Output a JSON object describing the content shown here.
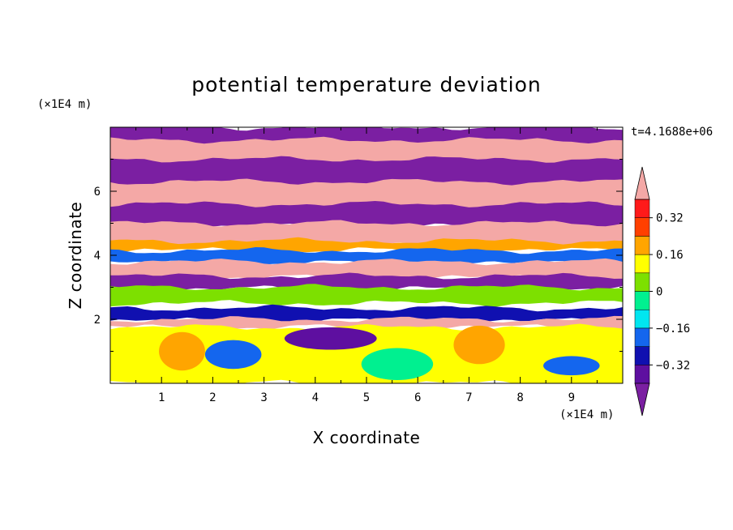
{
  "chart_data": {
    "type": "heatmap",
    "title": "potential temperature deviation",
    "xlabel": "X coordinate",
    "ylabel": "Z coordinate",
    "x_unit": "(×1E4 m)",
    "y_unit": "(×1E4 m)",
    "time_label": "t=4.1688e+06",
    "xlim": [
      0,
      10
    ],
    "ylim": [
      0,
      8
    ],
    "x_ticks": [
      1,
      2,
      3,
      4,
      5,
      6,
      7,
      8,
      9
    ],
    "y_ticks": [
      2,
      4,
      6
    ],
    "x_tick_labels": [
      "1",
      "2",
      "3",
      "4",
      "5",
      "6",
      "7",
      "8",
      "9"
    ],
    "y_tick_labels": [
      "2",
      "4",
      "6"
    ],
    "colorbar": {
      "levels": [
        -0.4,
        -0.32,
        -0.24,
        -0.16,
        -0.08,
        0,
        0.08,
        0.16,
        0.24,
        0.32,
        0.4
      ],
      "colors": [
        "#7b1fa2",
        "#5e0fa0",
        "#1010b0",
        "#1466ee",
        "#00e6f0",
        "#00f090",
        "#7de000",
        "#ffff00",
        "#ffa500",
        "#ff4000",
        "#ff1a1a",
        "#f4a8a6"
      ],
      "labels": [
        "0.32",
        "0.16",
        "0",
        "−0.16",
        "−0.32"
      ],
      "label_values": [
        0.32,
        0.16,
        0,
        -0.16,
        -0.32
      ],
      "extend": "both"
    },
    "features": [
      {
        "kind": "band",
        "value": -0.45,
        "x": [
          0,
          10
        ],
        "z": [
          7.4,
          8.0
        ]
      },
      {
        "kind": "band",
        "value": 0.45,
        "x": [
          0,
          10
        ],
        "z": [
          6.8,
          7.6
        ]
      },
      {
        "kind": "band",
        "value": -0.45,
        "x": [
          0,
          10
        ],
        "z": [
          6.1,
          7.0
        ]
      },
      {
        "kind": "band",
        "value": 0.45,
        "x": [
          0,
          10
        ],
        "z": [
          5.4,
          6.3
        ]
      },
      {
        "kind": "band",
        "value": -0.45,
        "x": [
          0,
          10
        ],
        "z": [
          4.9,
          5.6
        ]
      },
      {
        "kind": "band",
        "value": 0.45,
        "x": [
          0,
          10
        ],
        "z": [
          4.3,
          5.0
        ]
      },
      {
        "kind": "band",
        "value": 0.2,
        "x": [
          0,
          10
        ],
        "z": [
          4.15,
          4.45
        ]
      },
      {
        "kind": "band",
        "value": -0.2,
        "x": [
          0,
          10
        ],
        "z": [
          3.75,
          4.15
        ]
      },
      {
        "kind": "band",
        "value": 0.45,
        "x": [
          0,
          10
        ],
        "z": [
          3.3,
          3.8
        ]
      },
      {
        "kind": "band",
        "value": -0.45,
        "x": [
          0,
          10
        ],
        "z": [
          2.95,
          3.35
        ]
      },
      {
        "kind": "band",
        "value": 0.05,
        "x": [
          0,
          10
        ],
        "z": [
          2.5,
          3.0
        ]
      },
      {
        "kind": "band",
        "value": -0.3,
        "x": [
          0,
          10
        ],
        "z": [
          1.95,
          2.35
        ]
      },
      {
        "kind": "band",
        "value": 0.45,
        "x": [
          0,
          10
        ],
        "z": [
          1.75,
          2.0
        ]
      },
      {
        "kind": "band",
        "value": 0.1,
        "x": [
          0,
          10
        ],
        "z": [
          0.0,
          1.75
        ]
      },
      {
        "kind": "blob",
        "value": -0.2,
        "x": 2.4,
        "z": 0.9,
        "rx": 0.55,
        "rz": 0.45
      },
      {
        "kind": "blob",
        "value": -0.05,
        "x": 5.6,
        "z": 0.6,
        "rx": 0.7,
        "rz": 0.5
      },
      {
        "kind": "blob",
        "value": -0.2,
        "x": 9.0,
        "z": 0.55,
        "rx": 0.55,
        "rz": 0.3
      },
      {
        "kind": "blob",
        "value": 0.2,
        "x": 1.4,
        "z": 1.0,
        "rx": 0.45,
        "rz": 0.6
      },
      {
        "kind": "blob",
        "value": 0.2,
        "x": 7.2,
        "z": 1.2,
        "rx": 0.5,
        "rz": 0.6
      },
      {
        "kind": "blob",
        "value": -0.35,
        "x": 4.3,
        "z": 1.4,
        "rx": 0.9,
        "rz": 0.35
      }
    ]
  }
}
